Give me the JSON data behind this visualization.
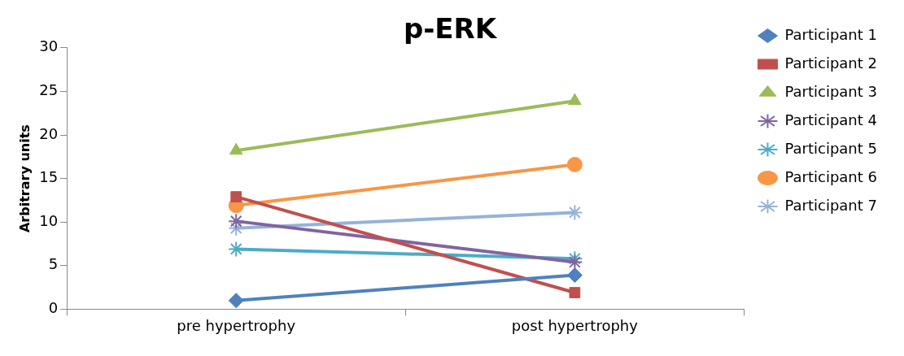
{
  "chart_data": {
    "type": "line",
    "title": "p-ERK",
    "ylabel": "Arbitrary units",
    "categories": [
      "pre hypertrophy",
      "post hypertrophy"
    ],
    "series": [
      {
        "name": "Participant 1",
        "color": "#4f81bd",
        "marker": "diamond",
        "values": [
          1.0,
          3.9
        ]
      },
      {
        "name": "Participant 2",
        "color": "#c0504d",
        "marker": "square",
        "values": [
          12.9,
          1.9
        ]
      },
      {
        "name": "Participant 3",
        "color": "#9bbb59",
        "marker": "triangle",
        "values": [
          18.2,
          23.9
        ]
      },
      {
        "name": "Participant 4",
        "color": "#8064a2",
        "marker": "cross",
        "values": [
          10.1,
          5.4
        ]
      },
      {
        "name": "Participant 5",
        "color": "#4bacc6",
        "marker": "cross",
        "values": [
          6.9,
          5.8
        ]
      },
      {
        "name": "Participant 6",
        "color": "#f79646",
        "marker": "circle",
        "values": [
          11.9,
          16.6
        ]
      },
      {
        "name": "Participant 7",
        "color": "#95b3d7",
        "marker": "cross",
        "values": [
          9.3,
          11.1
        ]
      }
    ],
    "ylim": [
      0,
      30
    ],
    "yticks": [
      0,
      5,
      10,
      15,
      20,
      25,
      30
    ],
    "grid": false,
    "legend": "right",
    "line_style": "solid"
  }
}
